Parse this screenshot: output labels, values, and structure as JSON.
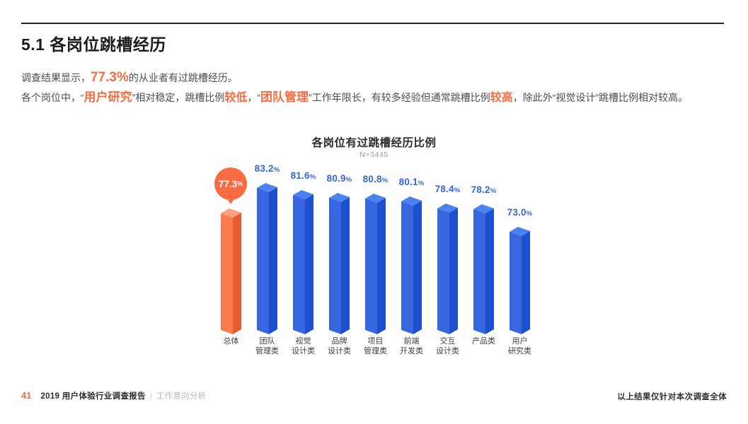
{
  "page": {
    "section_title": "5.1 各岗位跳槽经历",
    "intro": {
      "line1": [
        {
          "text": "调查结果显示，",
          "style": "plain"
        },
        {
          "text": "77.3%",
          "style": "em-large"
        },
        {
          "text": "的从业者有过跳槽经历。",
          "style": "plain"
        }
      ],
      "line2": [
        {
          "text": "各个岗位中，“",
          "style": "plain"
        },
        {
          "text": "用户研究",
          "style": "em-strong"
        },
        {
          "text": "”相对稳定，跳槽比例",
          "style": "plain"
        },
        {
          "text": "较低",
          "style": "em"
        },
        {
          "text": "，“",
          "style": "plain"
        },
        {
          "text": "团队管理",
          "style": "em-strong"
        },
        {
          "text": "”工作年限长，有较多经验但通常跳槽比例",
          "style": "plain"
        },
        {
          "text": "较高",
          "style": "em"
        },
        {
          "text": "，除此外“视觉设计”跳槽比例相对较高。",
          "style": "plain"
        }
      ]
    }
  },
  "chart_data": {
    "type": "bar",
    "title": "各岗位有过跳槽经历比例",
    "subtitle": "N=3445",
    "unit": "%",
    "categories": [
      "总体",
      "团队\n管理类",
      "视觉\n设计类",
      "品牌\n设计类",
      "项目\n管理类",
      "前端\n开发类",
      "交互\n设计类",
      "产品类",
      "用户\n研究类"
    ],
    "values": [
      77.3,
      83.2,
      81.6,
      80.9,
      80.8,
      80.1,
      78.4,
      78.2,
      73.0
    ],
    "highlight_index": 0,
    "highlight_style": "orange-balloon",
    "bar_style": "isometric-3d",
    "axis_visible": false,
    "grid": false,
    "legend": "none",
    "colors": {
      "blue": {
        "top": "#4C82F0",
        "left": "#3866E0",
        "right": "#1C50CE"
      },
      "orange": {
        "top": "#FBA07E",
        "left": "#FB7B50",
        "right": "#E85B30"
      },
      "value_label": "#3565DA",
      "balloon": "#FA6B44",
      "accent": "#FA6B42"
    }
  },
  "footer": {
    "page_number": "41",
    "report_title": "2019 用户体验行业调查报告",
    "separator": "|",
    "section": "工作意向分析",
    "note": "以上结果仅针对本次调查全体"
  }
}
